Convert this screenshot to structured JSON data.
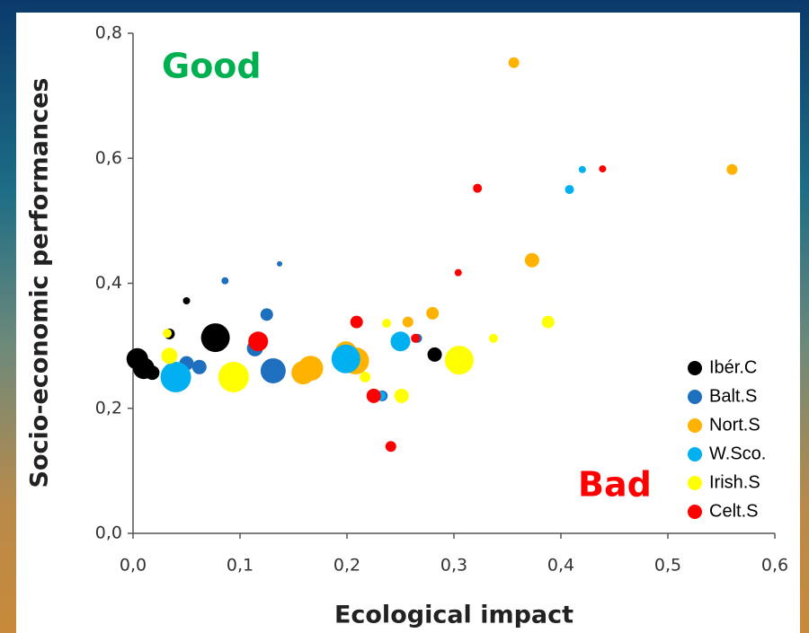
{
  "chart_data": {
    "type": "bubble",
    "x_label": "Ecological impact",
    "y_label": "Socio-economic performances",
    "annotations": [
      {
        "text": "Good",
        "color": "#00b050"
      },
      {
        "text": "Bad",
        "color": "#ff0000"
      }
    ],
    "xlim": [
      0,
      0.6
    ],
    "ylim": [
      0,
      0.8
    ],
    "xticks": [
      {
        "value": 0,
        "label": "0,0"
      },
      {
        "value": 0.1,
        "label": "0,1"
      },
      {
        "value": 0.2,
        "label": "0,2"
      },
      {
        "value": 0.3,
        "label": "0,3"
      },
      {
        "value": 0.4,
        "label": "0,4"
      },
      {
        "value": 0.5,
        "label": "0,5"
      },
      {
        "value": 0.6,
        "label": "0,6"
      }
    ],
    "yticks": [
      {
        "value": 0,
        "label": "0,0"
      },
      {
        "value": 0.2,
        "label": "0,2"
      },
      {
        "value": 0.4,
        "label": "0,4"
      },
      {
        "value": 0.6,
        "label": "0,6"
      },
      {
        "value": 0.8,
        "label": "0,8"
      }
    ],
    "legend": "lower right",
    "series": [
      {
        "name": "Ibér.C",
        "color": "#000000",
        "x": [
          0.004,
          0.01,
          0.018,
          0.05,
          0.077,
          0.034,
          0.282
        ],
        "values": [
          0.279,
          0.264,
          0.257,
          0.372,
          0.313,
          0.319,
          0.286
        ],
        "sizes": [
          12,
          12,
          8,
          4,
          16,
          6,
          8
        ]
      },
      {
        "name": "Balt.S",
        "color": "#1f6fbf",
        "x": [
          0.05,
          0.062,
          0.131,
          0.125,
          0.086,
          0.137,
          0.114,
          0.266,
          0.233
        ],
        "values": [
          0.272,
          0.266,
          0.26,
          0.35,
          0.404,
          0.431,
          0.296,
          0.312,
          0.22
        ],
        "sizes": [
          8,
          8,
          14,
          7,
          4,
          3,
          9,
          5,
          6
        ]
      },
      {
        "name": "Nort.S",
        "color": "#ffb300",
        "x": [
          0.356,
          0.56,
          0.373,
          0.28,
          0.257,
          0.159,
          0.166,
          0.199,
          0.208
        ],
        "values": [
          0.753,
          0.582,
          0.437,
          0.352,
          0.338,
          0.257,
          0.264,
          0.29,
          0.276
        ],
        "sizes": [
          6,
          6,
          8,
          7,
          6,
          13,
          14,
          12,
          15
        ]
      },
      {
        "name": "W.Sco.",
        "color": "#00b0f0",
        "x": [
          0.42,
          0.408,
          0.25,
          0.199,
          0.04,
          0.232
        ],
        "values": [
          0.582,
          0.55,
          0.307,
          0.279,
          0.25,
          0.22
        ],
        "sizes": [
          4,
          5,
          11,
          16,
          17,
          5
        ]
      },
      {
        "name": "Irish.S",
        "color": "#ffff00",
        "x": [
          0.032,
          0.034,
          0.094,
          0.305,
          0.237,
          0.217,
          0.251,
          0.337,
          0.388
        ],
        "values": [
          0.32,
          0.284,
          0.25,
          0.277,
          0.336,
          0.25,
          0.22,
          0.312,
          0.338
        ],
        "sizes": [
          5,
          9,
          17,
          16,
          5,
          6,
          8,
          5,
          7
        ]
      },
      {
        "name": "Celt.S",
        "color": "#ff0000",
        "x": [
          0.322,
          0.439,
          0.304,
          0.209,
          0.117,
          0.225,
          0.264,
          0.241
        ],
        "values": [
          0.552,
          0.583,
          0.417,
          0.338,
          0.307,
          0.22,
          0.312,
          0.139
        ],
        "sizes": [
          5,
          4,
          4,
          7,
          11,
          8,
          5,
          6
        ]
      }
    ]
  }
}
